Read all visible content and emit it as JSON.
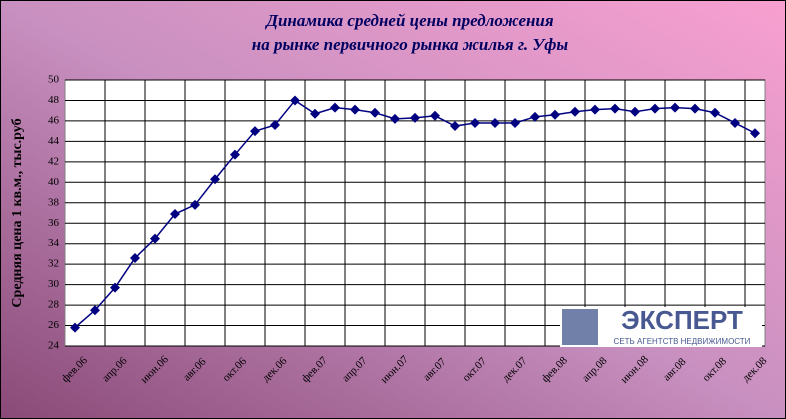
{
  "chart_data": {
    "type": "line",
    "title_lines": [
      "Динамика средней цены предложения",
      "на рынке первичного рынка жилья г. Уфы"
    ],
    "y_label": "Средняя цена 1 кв.м., тыс.руб",
    "categories": [
      "фев.06",
      null,
      "апр.06",
      null,
      "июн.06",
      null,
      "авг.06",
      null,
      "окт.06",
      null,
      "дек.06",
      null,
      "фев.07",
      null,
      "апр.07",
      null,
      "июн.07",
      null,
      "авг.07",
      null,
      "окт.07",
      null,
      "дек.07",
      null,
      "фев.08",
      null,
      "апр.08",
      null,
      "июн.08",
      null,
      "авг.08",
      null,
      "окт.08",
      null,
      "дек.08"
    ],
    "series": [
      {
        "color": "#000080",
        "values": [
          25.8,
          27.5,
          29.7,
          32.6,
          34.5,
          36.9,
          37.8,
          40.3,
          42.7,
          45.0,
          45.6,
          48.0,
          46.7,
          47.3,
          47.1,
          46.8,
          46.2,
          46.3,
          46.5,
          45.5,
          45.8,
          45.8,
          45.8,
          46.4,
          46.6,
          46.9,
          47.1,
          47.2,
          46.9,
          47.2,
          47.3,
          47.2,
          46.8,
          45.8,
          44.8
        ]
      }
    ],
    "ylim": [
      24,
      50
    ],
    "yticks": [
      24,
      26,
      28,
      30,
      32,
      34,
      36,
      38,
      40,
      42,
      44,
      46,
      48,
      50
    ],
    "grid": true,
    "logo_title": "ЭКСПЕРТ",
    "logo_subtitle": "СЕТЬ АГЕНТСТВ НЕДВИЖИМОСТИ"
  }
}
